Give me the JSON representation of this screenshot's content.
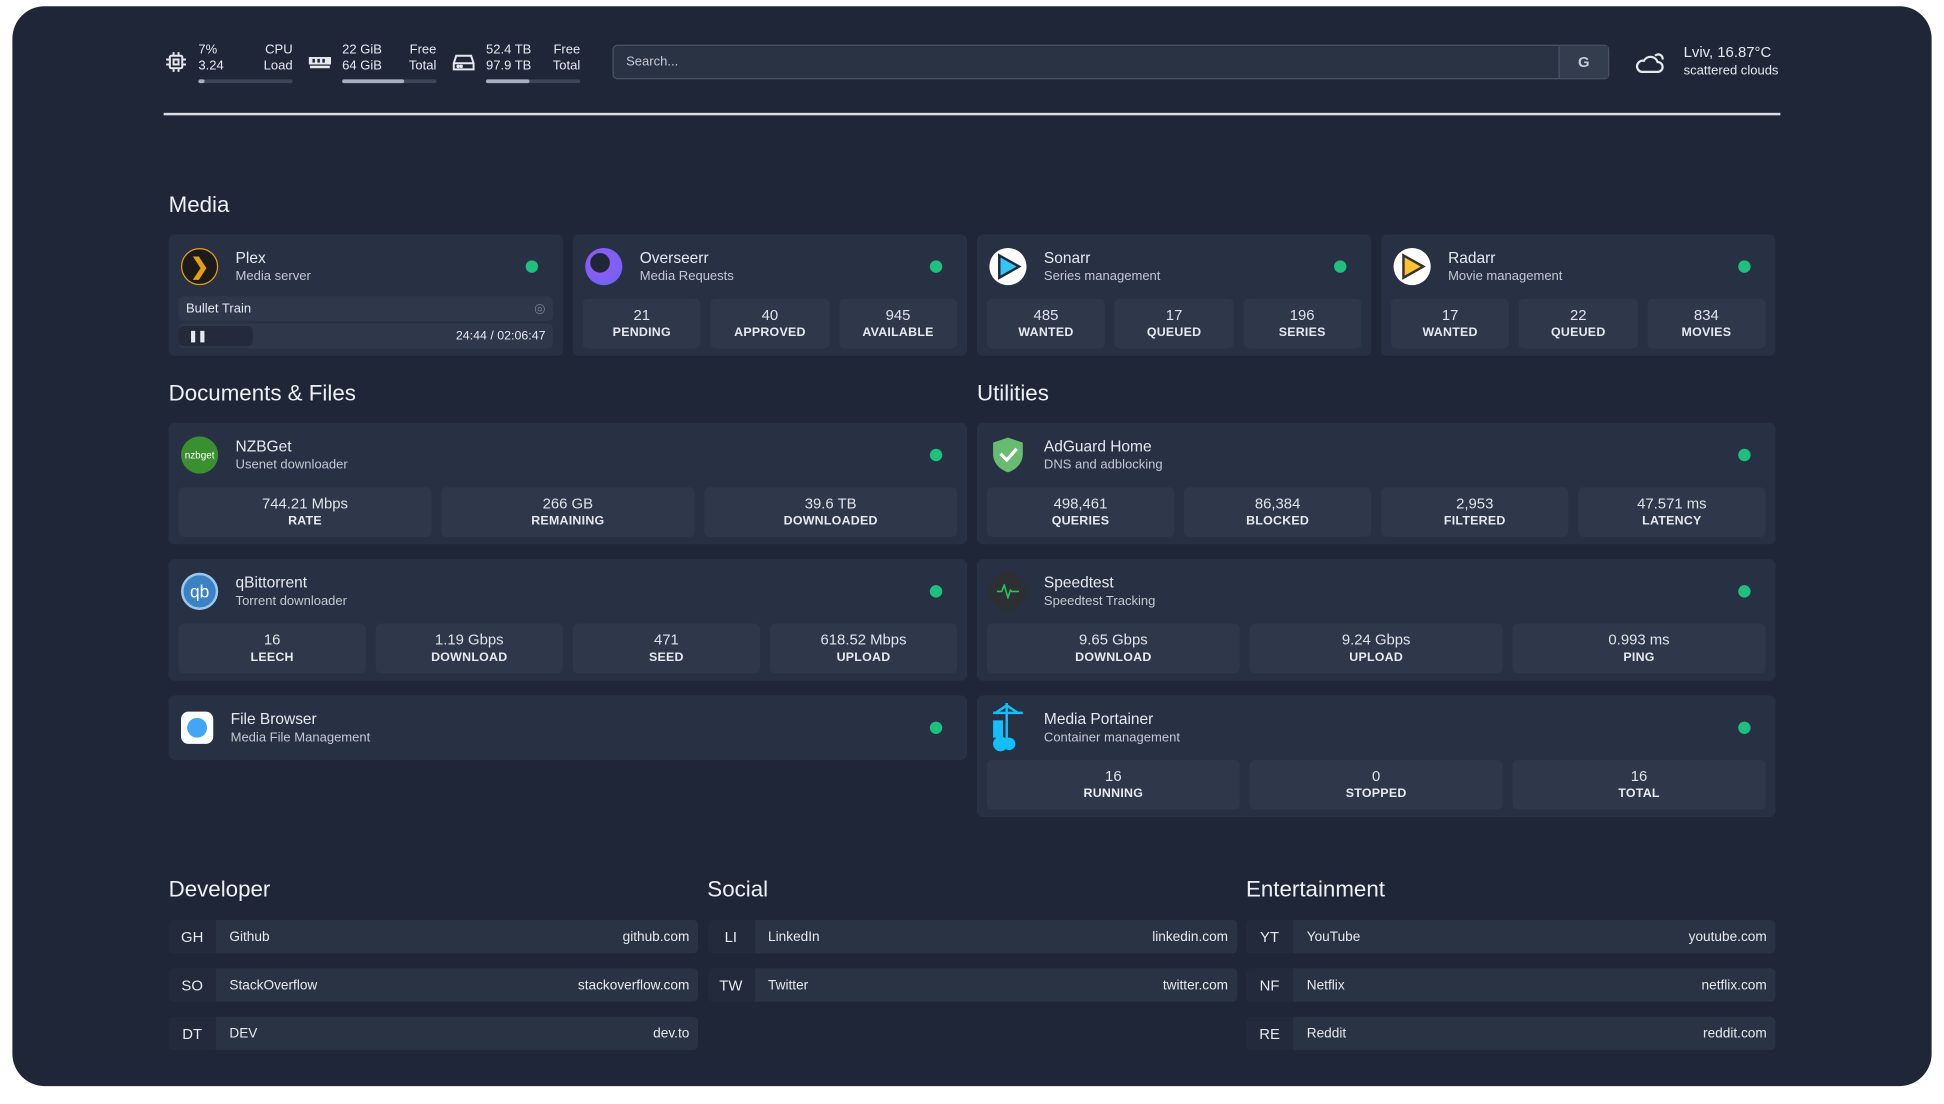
{
  "resources": {
    "cpu": {
      "icon": "cpu-icon",
      "value1": "7%",
      "label1": "CPU",
      "value2": "3.24",
      "label2": "Load",
      "usage": 0.07
    },
    "memory": {
      "icon": "memory-icon",
      "value1": "22 GiB",
      "label1": "Free",
      "value2": "64 GiB",
      "label2": "Total",
      "usage": 0.66
    },
    "disk": {
      "icon": "disk-icon",
      "value1": "52.4 TB",
      "label1": "Free",
      "value2": "97.9 TB",
      "label2": "Total",
      "usage": 0.46
    }
  },
  "search": {
    "placeholder": "Search...",
    "provider_button": "G"
  },
  "weather": {
    "icon": "cloud-icon",
    "location_temp": "Lviv, 16.87°C",
    "condition": "scattered clouds"
  },
  "colors": {
    "background": "#1f2638",
    "card": "#283143",
    "stat": "#2e384a",
    "status_online": "#1fbf7e"
  },
  "media": {
    "title": "Media",
    "services": [
      {
        "name": "Plex",
        "desc": "Media server",
        "icon": "plex-icon",
        "now_playing": {
          "title": "Bullet Train",
          "state": "paused",
          "time": "24:44 / 02:06:47",
          "progress": 0.195
        }
      },
      {
        "name": "Overseerr",
        "desc": "Media Requests",
        "icon": "overseerr-icon",
        "stats": [
          {
            "v": "21",
            "l": "PENDING"
          },
          {
            "v": "40",
            "l": "APPROVED"
          },
          {
            "v": "945",
            "l": "AVAILABLE"
          }
        ]
      },
      {
        "name": "Sonarr",
        "desc": "Series management",
        "icon": "sonarr-icon",
        "stats": [
          {
            "v": "485",
            "l": "WANTED"
          },
          {
            "v": "17",
            "l": "QUEUED"
          },
          {
            "v": "196",
            "l": "SERIES"
          }
        ]
      },
      {
        "name": "Radarr",
        "desc": "Movie management",
        "icon": "radarr-icon",
        "stats": [
          {
            "v": "17",
            "l": "WANTED"
          },
          {
            "v": "22",
            "l": "QUEUED"
          },
          {
            "v": "834",
            "l": "MOVIES"
          }
        ]
      }
    ]
  },
  "documents": {
    "title": "Documents & Files",
    "services": [
      {
        "name": "NZBGet",
        "desc": "Usenet downloader",
        "icon": "nzbget-icon",
        "logo_text": "nzbget",
        "stats": [
          {
            "v": "744.21 Mbps",
            "l": "RATE"
          },
          {
            "v": "266 GB",
            "l": "REMAINING"
          },
          {
            "v": "39.6 TB",
            "l": "DOWNLOADED"
          }
        ]
      },
      {
        "name": "qBittorrent",
        "desc": "Torrent downloader",
        "icon": "qbittorrent-icon",
        "logo_text": "qb",
        "stats": [
          {
            "v": "16",
            "l": "LEECH"
          },
          {
            "v": "1.19 Gbps",
            "l": "DOWNLOAD"
          },
          {
            "v": "471",
            "l": "SEED"
          },
          {
            "v": "618.52 Mbps",
            "l": "UPLOAD"
          }
        ]
      },
      {
        "name": "File Browser",
        "desc": "Media File Management",
        "icon": "filebrowser-icon"
      }
    ]
  },
  "utilities": {
    "title": "Utilities",
    "services": [
      {
        "name": "AdGuard Home",
        "desc": "DNS and adblocking",
        "icon": "adguard-icon",
        "stats": [
          {
            "v": "498,461",
            "l": "QUERIES"
          },
          {
            "v": "86,384",
            "l": "BLOCKED"
          },
          {
            "v": "2,953",
            "l": "FILTERED"
          },
          {
            "v": "47.571 ms",
            "l": "LATENCY"
          }
        ]
      },
      {
        "name": "Speedtest",
        "desc": "Speedtest Tracking",
        "icon": "speedtest-icon",
        "stats": [
          {
            "v": "9.65 Gbps",
            "l": "DOWNLOAD"
          },
          {
            "v": "9.24 Gbps",
            "l": "UPLOAD"
          },
          {
            "v": "0.993 ms",
            "l": "PING"
          }
        ]
      },
      {
        "name": "Media Portainer",
        "desc": "Container management",
        "icon": "portainer-icon",
        "stats": [
          {
            "v": "16",
            "l": "RUNNING"
          },
          {
            "v": "0",
            "l": "STOPPED"
          },
          {
            "v": "16",
            "l": "TOTAL"
          }
        ]
      }
    ]
  },
  "bookmarks": [
    {
      "title": "Developer",
      "items": [
        {
          "abbr": "GH",
          "name": "Github",
          "url": "github.com"
        },
        {
          "abbr": "SO",
          "name": "StackOverflow",
          "url": "stackoverflow.com"
        },
        {
          "abbr": "DT",
          "name": "DEV",
          "url": "dev.to"
        }
      ]
    },
    {
      "title": "Social",
      "items": [
        {
          "abbr": "LI",
          "name": "LinkedIn",
          "url": "linkedin.com"
        },
        {
          "abbr": "TW",
          "name": "Twitter",
          "url": "twitter.com"
        }
      ]
    },
    {
      "title": "Entertainment",
      "items": [
        {
          "abbr": "YT",
          "name": "YouTube",
          "url": "youtube.com"
        },
        {
          "abbr": "NF",
          "name": "Netflix",
          "url": "netflix.com"
        },
        {
          "abbr": "RE",
          "name": "Reddit",
          "url": "reddit.com"
        }
      ]
    }
  ]
}
